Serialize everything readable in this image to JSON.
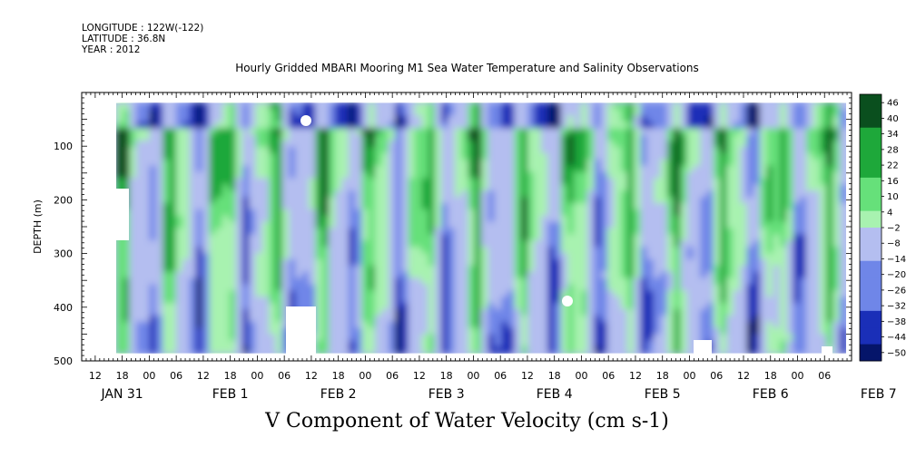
{
  "header": {
    "longitude": "LONGITUDE : 122W(-122)",
    "latitude": "LATITUDE : 36.8N",
    "year": "YEAR : 2012"
  },
  "chart_data": {
    "type": "heatmap",
    "title": "Hourly Gridded MBARI Mooring M1 Sea Water Temperature and Salinity Observations",
    "xlabel": "V Component of Water Velocity (cm s-1)",
    "ylabel": "DEPTH (m)",
    "x_axis": {
      "range_hours": [
        "2012-01-31 09:00",
        "2012-02-07 12:00"
      ],
      "hour_ticks": [
        "12",
        "18",
        "00",
        "06",
        "12",
        "18",
        "00",
        "06",
        "12",
        "18",
        "00",
        "06",
        "12",
        "18",
        "00",
        "06",
        "12",
        "18",
        "00",
        "06",
        "12",
        "18",
        "00",
        "06",
        "12",
        "18",
        "00",
        "06"
      ],
      "date_labels": [
        "JAN 31",
        "FEB  1",
        "FEB  2",
        "FEB  3",
        "FEB  4",
        "FEB  5",
        "FEB  6",
        "FEB  7"
      ]
    },
    "y_axis": {
      "range": [
        500,
        0
      ],
      "inverted": true,
      "ticks": [
        100,
        200,
        300,
        400,
        500
      ],
      "tick_labels": [
        "100",
        "200",
        "300",
        "400",
        "500"
      ]
    },
    "colorbar": {
      "levels": [
        46,
        40,
        34,
        28,
        22,
        16,
        10,
        4,
        -2,
        -8,
        -14,
        -20,
        -26,
        -32,
        -38,
        -44,
        -50
      ],
      "range": [
        -50,
        50
      ],
      "colors": {
        "deep_green": "#0a4f1e",
        "green": "#1ea83a",
        "light_green": "#66e07a",
        "pale_green": "#a8f2b0",
        "pale_blue": "#b4bef0",
        "blue": "#6f86e8",
        "deep_blue": "#1a2fb8",
        "navy": "#05156a"
      }
    },
    "data_depth_range_m": [
      20,
      485
    ]
  }
}
